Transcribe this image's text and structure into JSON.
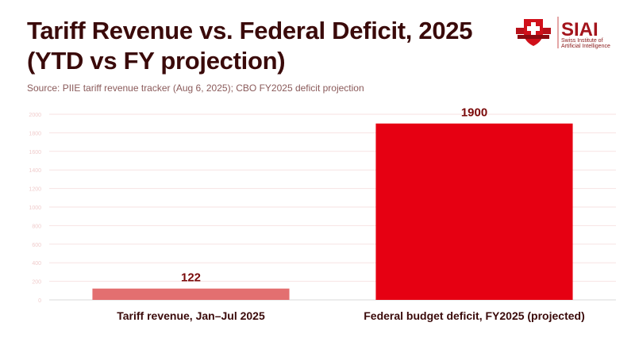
{
  "header": {
    "title_line1": "Tariff Revenue vs. Federal Deficit, 2025",
    "title_line2": "(YTD vs FY projection)",
    "subtitle": "Source: PIIE tariff revenue tracker (Aug 6, 2025); CBO FY2025 deficit projection"
  },
  "logo": {
    "name": "SIAI",
    "line1": "Swiss Institute of",
    "line2": "Artificial Intelligence",
    "icon": "swiss-cross-shield-icon"
  },
  "chart_data": {
    "type": "bar",
    "title": "Tariff Revenue vs. Federal Deficit, 2025 (YTD vs FY projection)",
    "subtitle": "Source: PIIE tariff revenue tracker (Aug 6, 2025); CBO FY2025 deficit projection",
    "categories": [
      "Tariff revenue, Jan–Jul 2025",
      "Federal budget deficit, FY2025 (projected)"
    ],
    "values": [
      122,
      1900
    ],
    "data_labels": [
      "122",
      "1900"
    ],
    "colors": [
      "#e36f70",
      "#e60012"
    ],
    "xlabel": "",
    "ylabel": "",
    "ylim": [
      0,
      2000
    ],
    "yticks": [
      0,
      200,
      400,
      600,
      800,
      1000,
      1200,
      1400,
      1600,
      1800,
      2000
    ],
    "grid": true,
    "legend": "none"
  },
  "colors": {
    "title": "#3a0a0a",
    "label": "#7a0a0a",
    "grid": "#f7e2e2",
    "tick": "#f0cccc",
    "axis": "#d8d8d8"
  }
}
